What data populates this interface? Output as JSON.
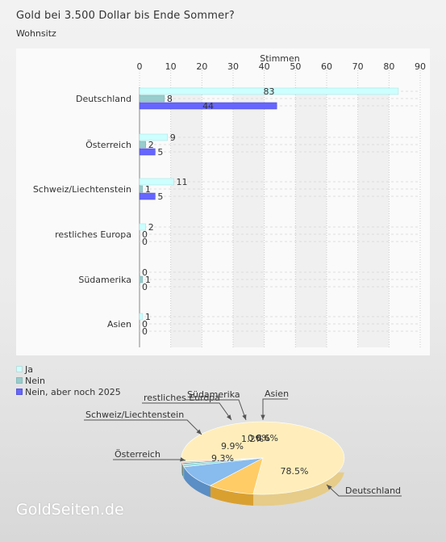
{
  "page": {
    "title": "Gold bei 3.500 Dollar bis Ende Sommer?",
    "subtitle": "Wohnsitz",
    "logo": "GoldSeiten.de"
  },
  "colors": {
    "ja": "#ccffff",
    "nein": "#99cccc",
    "nein_aber": "#6666ff"
  },
  "chart_data": [
    {
      "type": "bar",
      "orientation": "horizontal",
      "title": "Wohnsitz",
      "xlabel": "Stimmen",
      "xlim": [
        0,
        90
      ],
      "xticks": [
        0,
        10,
        20,
        30,
        40,
        50,
        60,
        70,
        80,
        90
      ],
      "categories": [
        "Deutschland",
        "Österreich",
        "Schweiz/Liechtenstein",
        "restliches Europa",
        "Südamerika",
        "Asien"
      ],
      "series": [
        {
          "name": "Ja",
          "color": "#ccffff",
          "values": [
            83,
            9,
            11,
            2,
            0,
            1
          ]
        },
        {
          "name": "Nein",
          "color": "#99cccc",
          "values": [
            8,
            2,
            1,
            0,
            1,
            0
          ]
        },
        {
          "name": "Nein, aber noch 2025",
          "color": "#6666ff",
          "values": [
            44,
            5,
            5,
            0,
            0,
            0
          ]
        }
      ],
      "legend": "bottom-left",
      "grid": true
    },
    {
      "type": "pie",
      "slices": [
        {
          "label": "Deutschland",
          "value": 78.5,
          "pct_text": "78.5%",
          "color": "#ffeebb",
          "side": "#e6cc88"
        },
        {
          "label": "Österreich",
          "value": 9.3,
          "pct_text": "9.3%",
          "color": "#ffcc66",
          "side": "#d9a030"
        },
        {
          "label": "Schweiz/Liechtenstein",
          "value": 9.9,
          "pct_text": "9.9%",
          "color": "#88bbee",
          "side": "#5a8ec4"
        },
        {
          "label": "restliches Europa",
          "value": 1.2,
          "pct_text": "1.2%",
          "color": "#99dddd",
          "side": "#6fb4b4"
        },
        {
          "label": "Südamerika",
          "value": 0.6,
          "pct_text": "0.6%",
          "color": "#449999",
          "side": "#2f7272"
        },
        {
          "label": "Asien",
          "value": 0.6,
          "pct_text": "0.6%",
          "color": "#ffbbaa",
          "side": "#d98f7c"
        }
      ]
    }
  ]
}
